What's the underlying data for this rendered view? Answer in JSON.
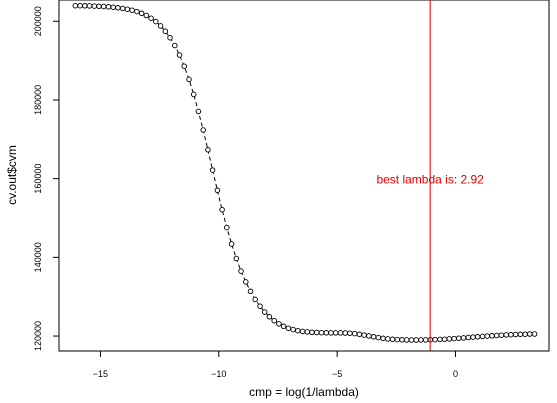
{
  "chart_data": {
    "type": "scatter",
    "title": "",
    "xlabel": "cmp = log(1/lambda)",
    "ylabel": "cv.out$cvm",
    "xlim": [
      -16.75,
      3.95
    ],
    "ylim": [
      116200,
      205400
    ],
    "x_ticks": [
      -15,
      -10,
      -5,
      0
    ],
    "x_tick_labels": [
      "−15",
      "−10",
      "−5",
      "0"
    ],
    "y_ticks": [
      120000,
      140000,
      160000,
      180000,
      200000
    ],
    "y_tick_labels": [
      "120000",
      "140000",
      "160000",
      "180000",
      "200000"
    ],
    "grid": false,
    "legend": "none",
    "marker": "open-circle",
    "connecting_line": "dashed",
    "colors": {
      "points": "#000000",
      "vline": "#dd0000",
      "annotation": "#dd0000"
    },
    "vline": {
      "x": -1.07
    },
    "annotation": {
      "text": "best lambda is:  2.92",
      "x": -1.07,
      "y": 159800
    },
    "series": [
      {
        "x": [
          -16.06,
          -15.86,
          -15.66,
          -15.46,
          -15.26,
          -15.06,
          -14.86,
          -14.66,
          -14.46,
          -14.26,
          -14.06,
          -13.86,
          -13.66,
          -13.46,
          -13.26,
          -13.06,
          -12.86,
          -12.66,
          -12.46,
          -12.26,
          -12.06,
          -11.86,
          -11.66,
          -11.46,
          -11.26,
          -11.06,
          -10.86,
          -10.66,
          -10.46,
          -10.26,
          -10.06,
          -9.86,
          -9.66,
          -9.46,
          -9.26,
          -9.06,
          -8.86,
          -8.66,
          -8.46,
          -8.26,
          -8.06,
          -7.86,
          -7.66,
          -7.46,
          -7.26,
          -7.06,
          -6.86,
          -6.66,
          -6.46,
          -6.26,
          -6.06,
          -5.86,
          -5.66,
          -5.46,
          -5.26,
          -5.06,
          -4.86,
          -4.66,
          -4.46,
          -4.26,
          -4.06,
          -3.86,
          -3.66,
          -3.46,
          -3.26,
          -3.06,
          -2.86,
          -2.66,
          -2.46,
          -2.26,
          -2.06,
          -1.86,
          -1.66,
          -1.46,
          -1.26,
          -1.06,
          -0.86,
          -0.66,
          -0.46,
          -0.26,
          -0.06,
          0.14,
          0.34,
          0.54,
          0.74,
          0.94,
          1.14,
          1.34,
          1.54,
          1.74,
          1.94,
          2.14,
          2.34,
          2.54,
          2.74,
          2.94,
          3.14,
          3.34
        ],
        "y": [
          203950,
          203940,
          203920,
          203890,
          203850,
          203800,
          203740,
          203660,
          203560,
          203430,
          203270,
          203060,
          202800,
          202460,
          202030,
          201470,
          200770,
          199900,
          198820,
          197480,
          195830,
          193830,
          191420,
          188570,
          185230,
          181400,
          177090,
          172360,
          167330,
          162170,
          157040,
          152120,
          147550,
          143400,
          139710,
          136510,
          133750,
          131370,
          129320,
          127580,
          126110,
          124890,
          123890,
          123090,
          122470,
          121990,
          121630,
          121370,
          121180,
          121050,
          120960,
          120900,
          120860,
          120830,
          120810,
          120800,
          120800,
          120780,
          120730,
          120620,
          120450,
          120250,
          120030,
          119800,
          119600,
          119420,
          119280,
          119170,
          119090,
          119040,
          119010,
          119000,
          119000,
          119010,
          119030,
          119060,
          119100,
          119150,
          119210,
          119280,
          119360,
          119450,
          119540,
          119630,
          119720,
          119810,
          119900,
          119990,
          120070,
          120150,
          120220,
          120290,
          120350,
          120400,
          120440,
          120480,
          120510,
          120530
        ]
      }
    ]
  }
}
